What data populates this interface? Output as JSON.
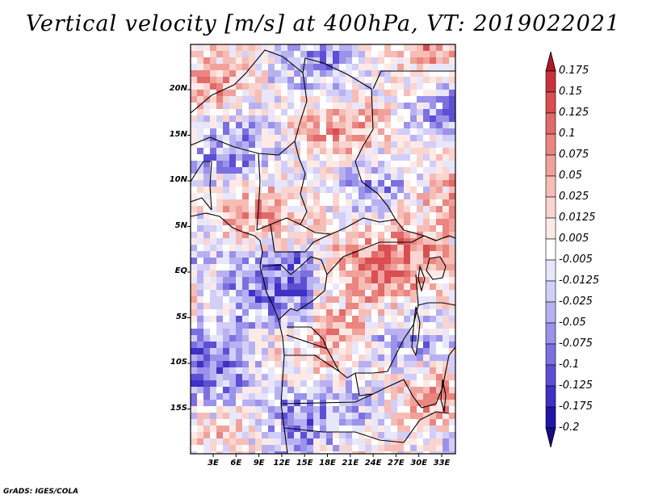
{
  "title": "Vertical velocity [m/s] at 400hPa, VT: 2019022021",
  "credit": "GrADS: IGES/COLA",
  "map": {
    "lat_labels": [
      "20N",
      "15N",
      "10N",
      "5N",
      "EQ",
      "5S",
      "10S",
      "15S"
    ],
    "lon_labels": [
      "3E",
      "6E",
      "9E",
      "12E",
      "15E",
      "18E",
      "21E",
      "24E",
      "27E",
      "30E",
      "33E"
    ]
  },
  "colorbar": {
    "labels": [
      "0.175",
      "0.15",
      "0.125",
      "0.1",
      "0.075",
      "0.05",
      "0.025",
      "0.0125",
      "0.005",
      "-0.005",
      "-0.0125",
      "-0.025",
      "-0.05",
      "-0.075",
      "-0.1",
      "-0.125",
      "-0.175",
      "-0.2"
    ],
    "colors": [
      "#b2182b",
      "#c9323d",
      "#d84e53",
      "#e26a68",
      "#ea8580",
      "#f1a19b",
      "#f6bdb6",
      "#fad4cf",
      "#fdeae7",
      "#ffffff",
      "#e8e6fb",
      "#d2cef7",
      "#b8b1f1",
      "#9b92ea",
      "#7c70e0",
      "#5d4fd3",
      "#3e31c3",
      "#2314a8",
      "#170b8a"
    ]
  },
  "colors": {
    "positive_field": "#e26a68",
    "negative_field": "#7c70e0"
  }
}
